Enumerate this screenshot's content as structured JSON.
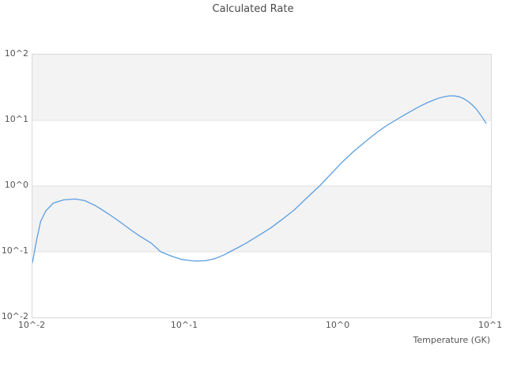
{
  "colors": {
    "line": "#5c9ee0",
    "band_fill": "#f3f3f3",
    "grid_line": "#e2e2e2",
    "plot_border": "#d9d9d9",
    "tick_text": "#555555",
    "title_text": "#4a4a4a"
  },
  "chart_data": {
    "type": "line",
    "title": "Calculated Rate",
    "xlabel": "Temperature (GK)",
    "ylabel": "",
    "xscale": "log",
    "yscale": "log",
    "xlim": [
      0.01,
      10
    ],
    "ylim": [
      0.01,
      100
    ],
    "x_tick_labels": [
      "10^-2",
      "10^-1",
      "10^0",
      "10^1"
    ],
    "y_tick_labels": [
      "10^2",
      "10^1",
      "10^0",
      "10^-1",
      "10^-2"
    ],
    "x_tick_values": [
      0.01,
      0.1,
      1,
      10
    ],
    "y_tick_values": [
      100,
      10,
      1,
      0.1,
      0.01
    ],
    "grid": "horizontal decade lines with alternating shaded bands",
    "shaded_decades_y": [
      [
        10,
        100
      ],
      [
        0.1,
        1
      ]
    ],
    "legend": "none",
    "series": [
      {
        "name": "calculated-rate",
        "points": [
          [
            0.01,
            0.068
          ],
          [
            0.0106,
            0.143
          ],
          [
            0.0113,
            0.287
          ],
          [
            0.0122,
            0.415
          ],
          [
            0.0137,
            0.55
          ],
          [
            0.016,
            0.615
          ],
          [
            0.019,
            0.635
          ],
          [
            0.022,
            0.6
          ],
          [
            0.026,
            0.5
          ],
          [
            0.031,
            0.385
          ],
          [
            0.037,
            0.29
          ],
          [
            0.044,
            0.215
          ],
          [
            0.05,
            0.175
          ],
          [
            0.06,
            0.135
          ],
          [
            0.069,
            0.1
          ],
          [
            0.082,
            0.085
          ],
          [
            0.095,
            0.0765
          ],
          [
            0.11,
            0.0728
          ],
          [
            0.12,
            0.0722
          ],
          [
            0.135,
            0.073
          ],
          [
            0.155,
            0.078
          ],
          [
            0.18,
            0.09
          ],
          [
            0.196,
            0.1
          ],
          [
            0.22,
            0.115
          ],
          [
            0.25,
            0.135
          ],
          [
            0.3,
            0.175
          ],
          [
            0.36,
            0.228
          ],
          [
            0.43,
            0.31
          ],
          [
            0.52,
            0.44
          ],
          [
            0.62,
            0.65
          ],
          [
            0.755,
            1.0
          ],
          [
            0.88,
            1.45
          ],
          [
            1.05,
            2.25
          ],
          [
            1.25,
            3.3
          ],
          [
            1.5,
            4.7
          ],
          [
            1.8,
            6.6
          ],
          [
            2.1,
            8.5
          ],
          [
            2.37,
            10.0
          ],
          [
            2.7,
            12.0
          ],
          [
            3.0,
            13.8
          ],
          [
            3.4,
            16.2
          ],
          [
            3.8,
            18.4
          ],
          [
            4.2,
            20.3
          ],
          [
            4.6,
            21.9
          ],
          [
            5.0,
            23.0
          ],
          [
            5.4,
            23.6
          ],
          [
            5.8,
            23.5
          ],
          [
            6.2,
            22.8
          ],
          [
            6.6,
            21.5
          ],
          [
            7.0,
            19.8
          ],
          [
            7.5,
            17.4
          ],
          [
            8.0,
            14.9
          ],
          [
            8.6,
            11.9
          ],
          [
            9.3,
            9.0
          ]
        ]
      }
    ]
  }
}
